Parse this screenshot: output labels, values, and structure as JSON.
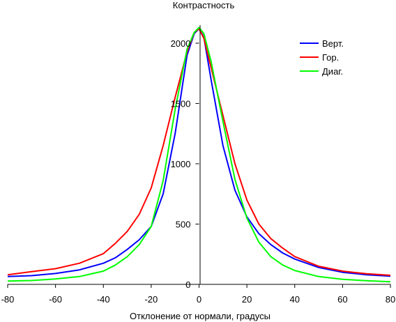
{
  "chart_data": {
    "type": "line",
    "title": "Контрастность",
    "xlabel": "Отклонение от нормали, градусы",
    "ylabel": "",
    "xlim": [
      -80,
      80
    ],
    "ylim": [
      0,
      2150
    ],
    "xticks": [
      -80,
      -60,
      -40,
      -20,
      0,
      20,
      40,
      60,
      80
    ],
    "yticks": [
      0,
      500,
      1000,
      1500,
      2000
    ],
    "grid": false,
    "legend_position": "top-right",
    "series": [
      {
        "name": "Верт.",
        "color": "#0000ff",
        "x": [
          -80,
          -70,
          -60,
          -50,
          -40,
          -35,
          -30,
          -25,
          -20,
          -15,
          -10,
          -5,
          -2,
          0,
          2,
          5,
          10,
          15,
          20,
          25,
          30,
          35,
          40,
          50,
          60,
          70,
          80
        ],
        "y": [
          65,
          72,
          90,
          120,
          175,
          220,
          290,
          370,
          480,
          750,
          1250,
          1900,
          2080,
          2120,
          2050,
          1700,
          1150,
          780,
          560,
          420,
          330,
          260,
          210,
          140,
          100,
          80,
          68
        ]
      },
      {
        "name": "Гор.",
        "color": "#ff0000",
        "x": [
          -80,
          -70,
          -60,
          -50,
          -40,
          -35,
          -30,
          -25,
          -20,
          -15,
          -10,
          -5,
          -2,
          0,
          2,
          5,
          10,
          15,
          20,
          25,
          30,
          35,
          40,
          50,
          60,
          70,
          80
        ],
        "y": [
          80,
          105,
          130,
          175,
          255,
          340,
          440,
          580,
          800,
          1150,
          1550,
          1930,
          2090,
          2120,
          2040,
          1800,
          1400,
          1000,
          700,
          500,
          380,
          300,
          230,
          150,
          110,
          88,
          75
        ]
      },
      {
        "name": "Диаг.",
        "color": "#00ff00",
        "x": [
          -80,
          -70,
          -60,
          -50,
          -40,
          -35,
          -30,
          -25,
          -20,
          -15,
          -10,
          -5,
          -2,
          0,
          2,
          5,
          10,
          15,
          20,
          25,
          30,
          35,
          40,
          50,
          60,
          70,
          80
        ],
        "y": [
          28,
          32,
          45,
          65,
          110,
          160,
          230,
          330,
          480,
          860,
          1450,
          1950,
          2090,
          2130,
          2080,
          1850,
          1350,
          870,
          550,
          350,
          230,
          160,
          115,
          65,
          42,
          30,
          22
        ]
      }
    ]
  }
}
